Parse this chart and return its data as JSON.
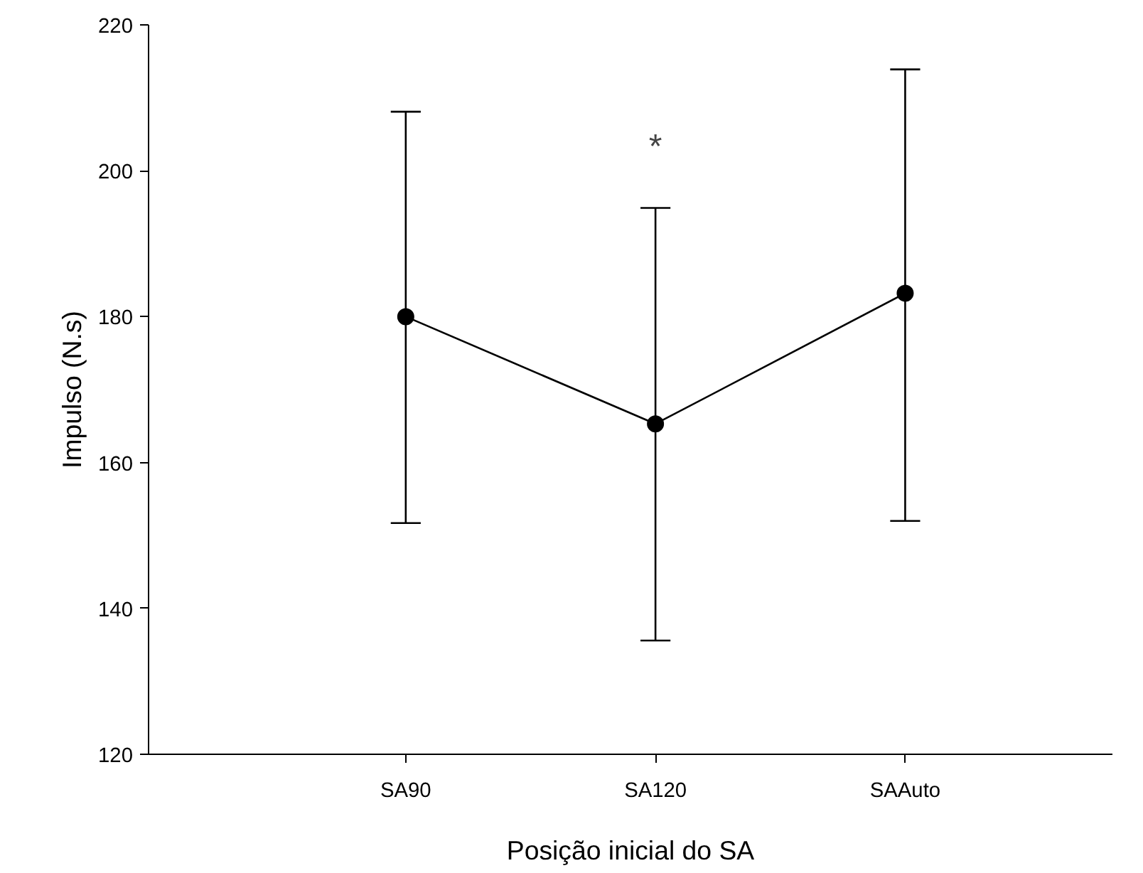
{
  "chart_data": {
    "type": "line",
    "xlabel": "Posição inicial do SA",
    "ylabel": "Impulso (N.s)",
    "categories": [
      "SA90",
      "SA120",
      "SAAuto"
    ],
    "series": [
      {
        "color": "#000000",
        "values": [
          180.0,
          165.3,
          183.2
        ],
        "errors": [
          [
            151.7,
            208.1
          ],
          [
            135.6,
            194.9
          ],
          [
            152.0,
            213.9
          ]
        ]
      }
    ],
    "marker": "circle",
    "line_style": "solid",
    "ylim": [
      120,
      220
    ],
    "yticks": [
      120,
      140,
      160,
      180,
      200,
      220
    ],
    "annotations": [
      "*"
    ],
    "grid": false
  }
}
